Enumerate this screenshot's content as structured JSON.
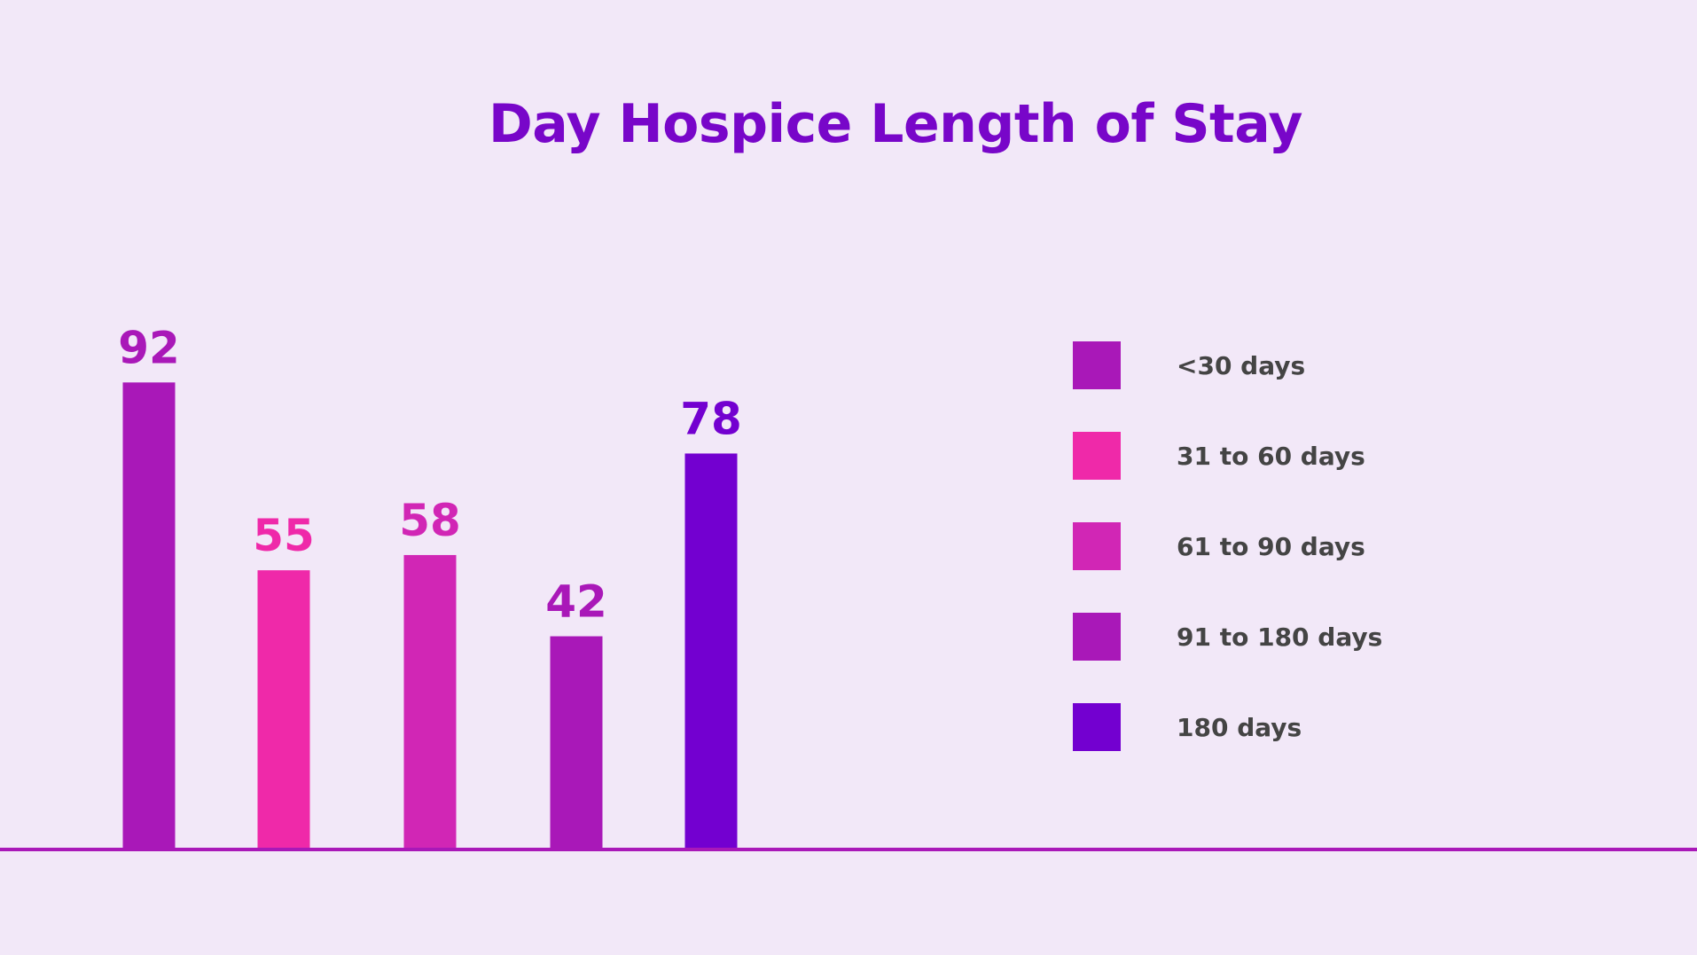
{
  "chart_data": {
    "type": "bar",
    "title": "Day Hospice Length of Stay",
    "xlabel": "",
    "ylabel": "",
    "categories": [
      "<30 days",
      "31 to 60 days",
      "61 to 90 days",
      "91 to 180 days",
      " 180 days"
    ],
    "values": [
      92,
      55,
      58,
      42,
      78
    ],
    "colors": [
      "#a918b8",
      "#ef29a9",
      "#d126b5",
      "#a918b8",
      "#7300d0"
    ],
    "ylim": [
      0,
      100
    ],
    "grid": false,
    "legend_position": "right",
    "axis_color": "#a918b8"
  }
}
